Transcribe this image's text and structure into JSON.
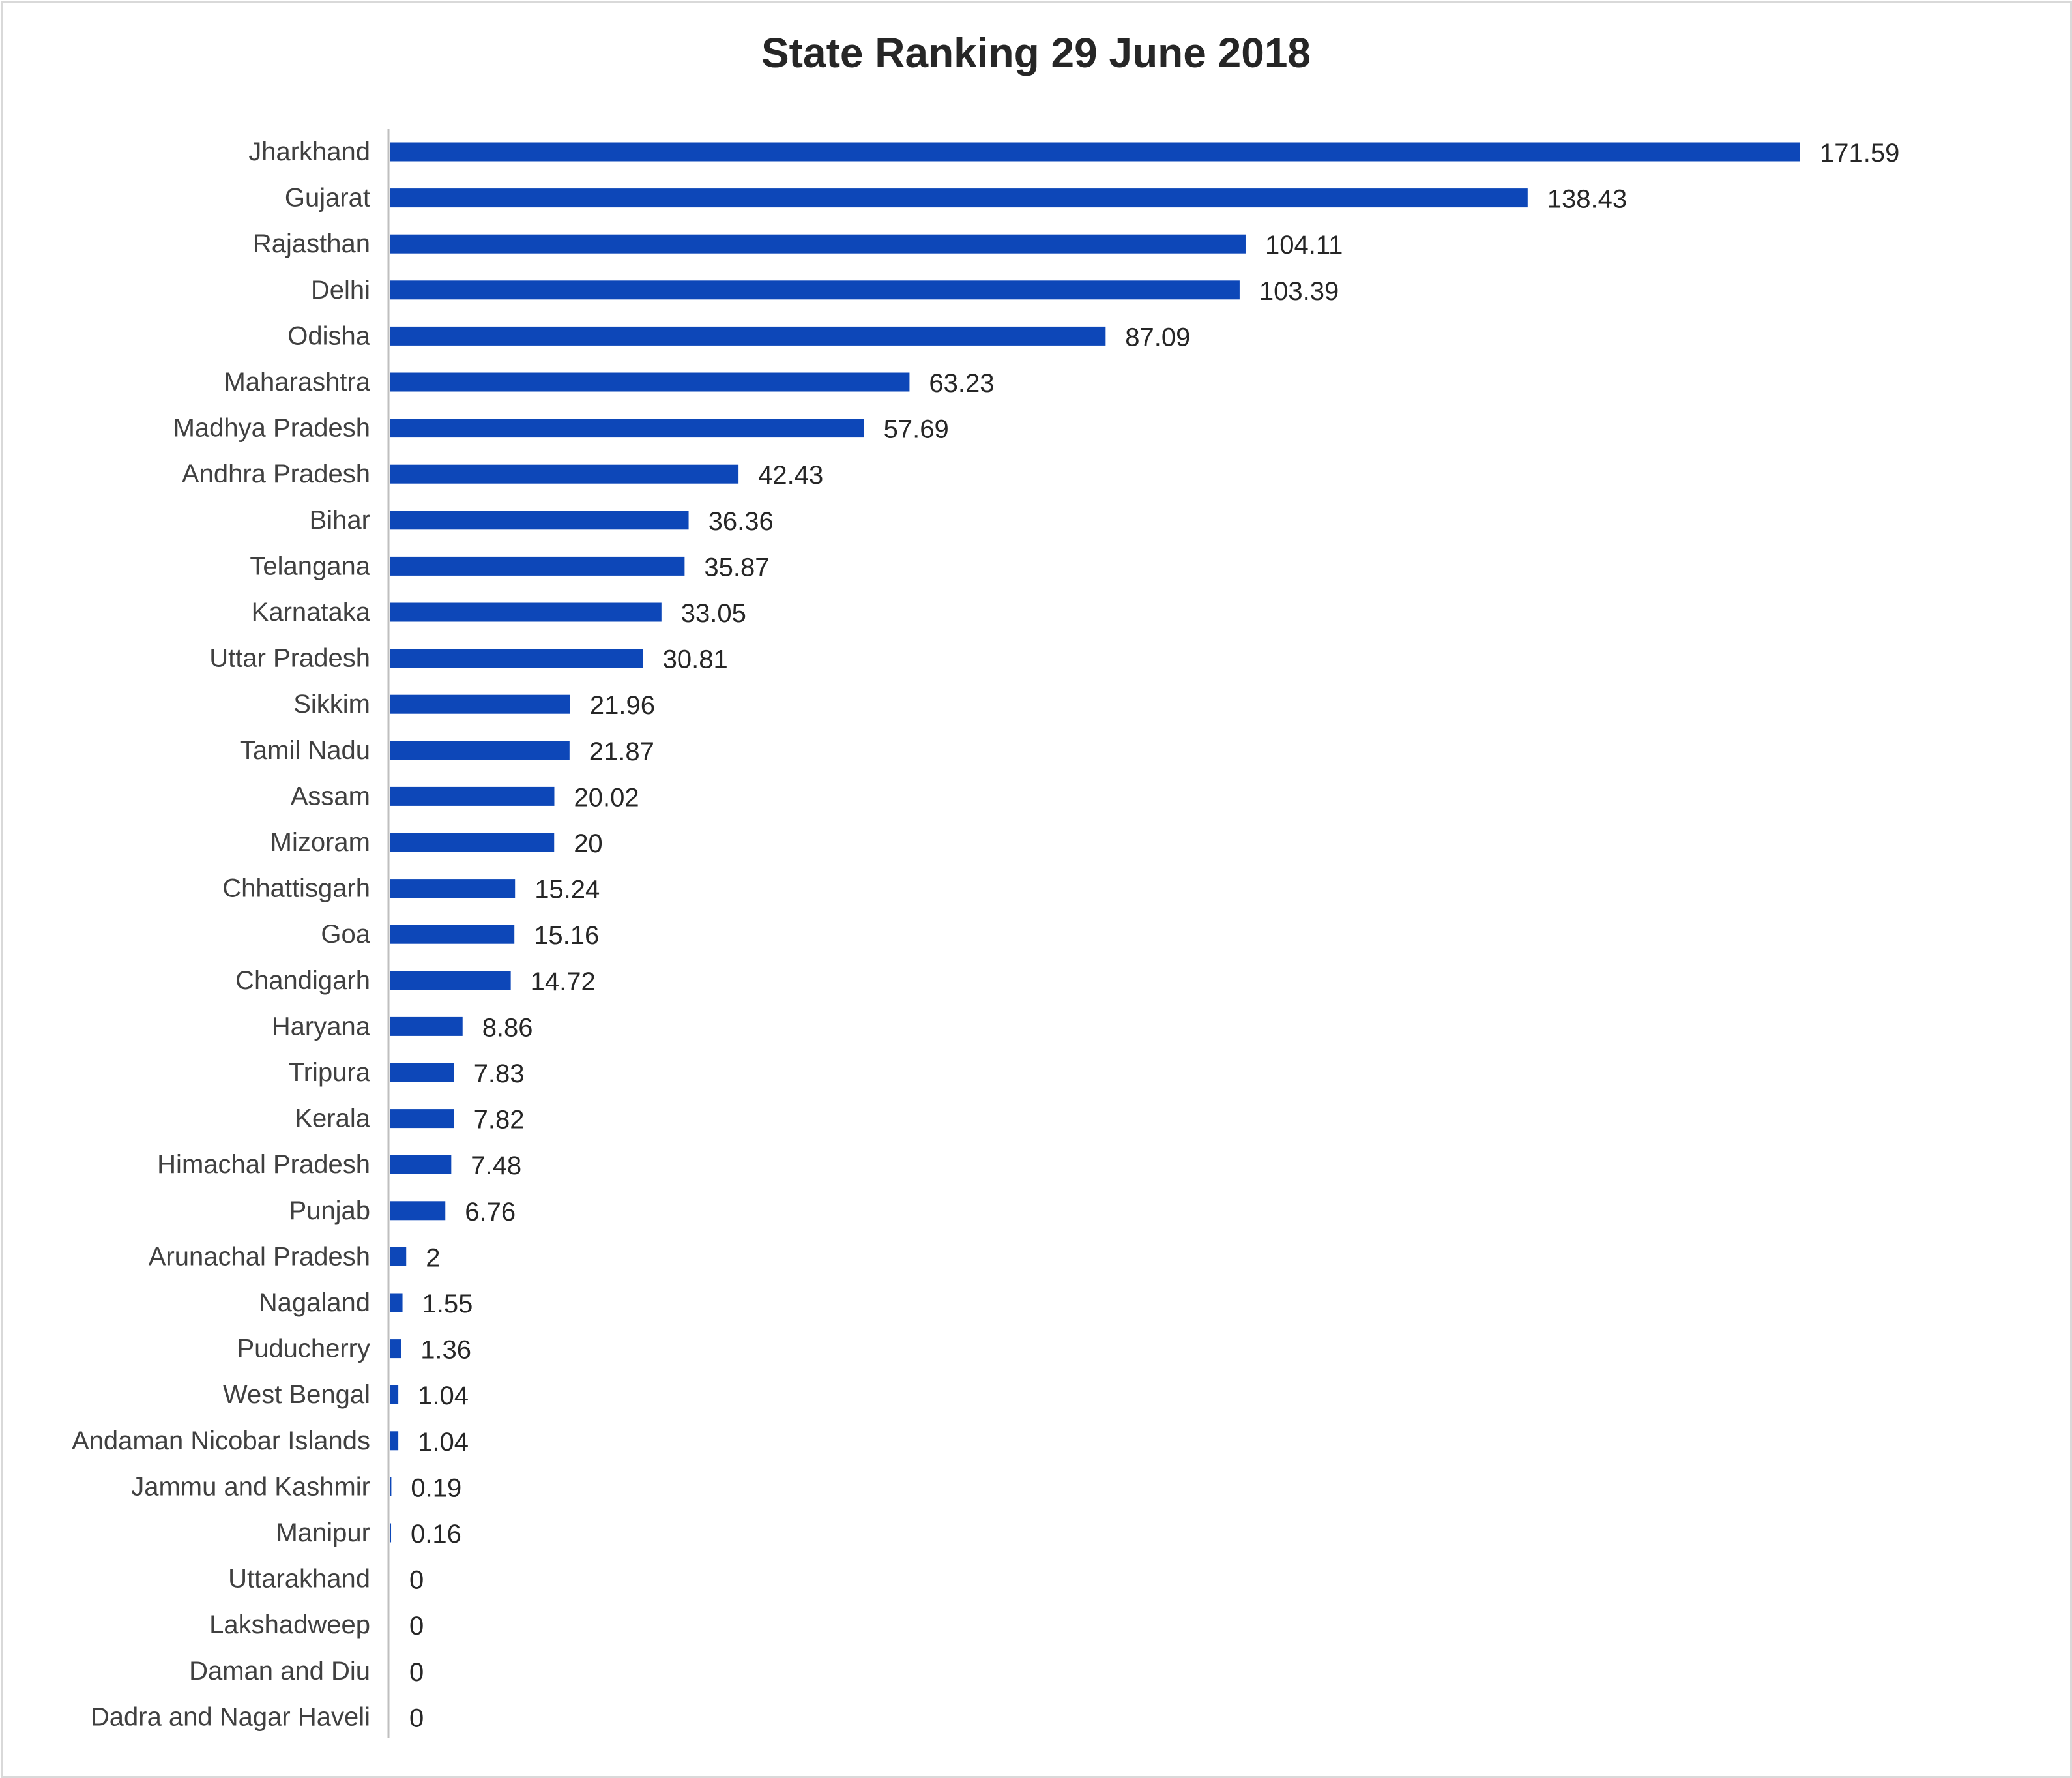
{
  "chart_data": {
    "type": "bar",
    "orientation": "horizontal",
    "title": "State Ranking 29 June 2018",
    "xlabel": "",
    "ylabel": "",
    "xlim": [
      0,
      171.59
    ],
    "grid": false,
    "legend": "none",
    "bar_color": "#0d47b8",
    "categories": [
      "Jharkhand",
      "Gujarat",
      "Rajasthan",
      "Delhi",
      "Odisha",
      "Maharashtra",
      "Madhya Pradesh",
      "Andhra Pradesh",
      "Bihar",
      "Telangana",
      "Karnataka",
      "Uttar Pradesh",
      "Sikkim",
      "Tamil Nadu",
      "Assam",
      "Mizoram",
      "Chhattisgarh",
      "Goa",
      "Chandigarh",
      "Haryana",
      "Tripura",
      "Kerala",
      "Himachal Pradesh",
      "Punjab",
      "Arunachal Pradesh",
      "Nagaland",
      "Puducherry",
      "West Bengal",
      "Andaman Nicobar Islands",
      "Jammu and Kashmir",
      "Manipur",
      "Uttarakhand",
      "Lakshadweep",
      "Daman and Diu",
      "Dadra and Nagar Haveli"
    ],
    "values": [
      171.59,
      138.43,
      104.11,
      103.39,
      87.09,
      63.23,
      57.69,
      42.43,
      36.36,
      35.87,
      33.05,
      30.81,
      21.96,
      21.87,
      20.02,
      20,
      15.24,
      15.16,
      14.72,
      8.86,
      7.83,
      7.82,
      7.48,
      6.76,
      2,
      1.55,
      1.36,
      1.04,
      1.04,
      0.19,
      0.16,
      0,
      0,
      0,
      0
    ],
    "value_labels": [
      "171.59",
      "138.43",
      "104.11",
      "103.39",
      "87.09",
      "63.23",
      "57.69",
      "42.43",
      "36.36",
      "35.87",
      "33.05",
      "30.81",
      "21.96",
      "21.87",
      "20.02",
      "20",
      "15.24",
      "15.16",
      "14.72",
      "8.86",
      "7.83",
      "7.82",
      "7.48",
      "6.76",
      "2",
      "1.55",
      "1.36",
      "1.04",
      "1.04",
      "0.19",
      "0.16",
      "0",
      "0",
      "0",
      "0"
    ]
  }
}
